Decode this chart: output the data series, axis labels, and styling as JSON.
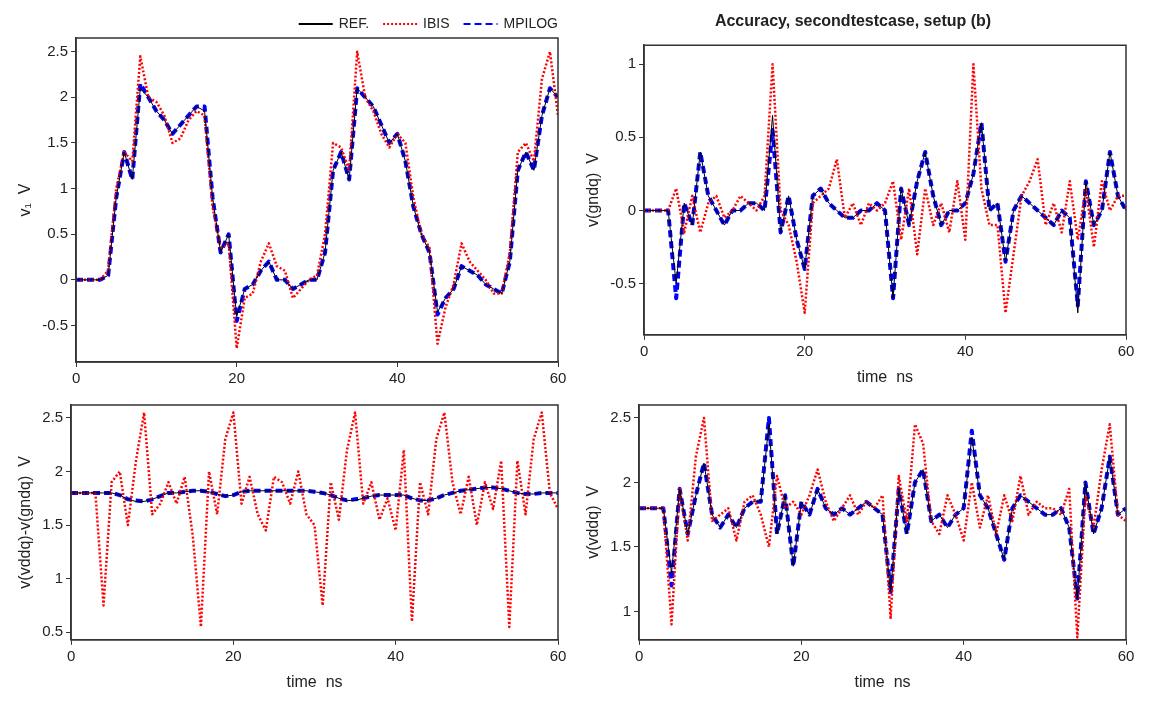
{
  "chart_data": [
    {
      "type": "line",
      "ylabel": "v₁  V",
      "xlim": [
        0,
        60
      ],
      "xticks": [
        0,
        20,
        40,
        60
      ],
      "ylim": [
        -0.9,
        2.65
      ],
      "yticks": [
        -0.5,
        0,
        0.5,
        1,
        1.5,
        2,
        2.5
      ],
      "grid": false,
      "legend": "top right",
      "marker": "none",
      "x": [
        0,
        1,
        2,
        3,
        4,
        5,
        6,
        7,
        8,
        9,
        10,
        11,
        12,
        13,
        14,
        15,
        16,
        17,
        18,
        19,
        20,
        21,
        22,
        23,
        24,
        25,
        26,
        27,
        28,
        29,
        30,
        31,
        32,
        33,
        34,
        35,
        36,
        37,
        38,
        39,
        40,
        41,
        42,
        43,
        44,
        45,
        46,
        47,
        48,
        49,
        50,
        51,
        52,
        53,
        54,
        55,
        56,
        57,
        58,
        59,
        60
      ],
      "series": [
        {
          "name": "REF.",
          "color": "#000000",
          "line_style": "solid",
          "values": [
            0,
            0,
            0,
            0,
            0.05,
            0.9,
            1.4,
            1.1,
            2.1,
            2.0,
            1.85,
            1.75,
            1.6,
            1.7,
            1.8,
            1.9,
            1.85,
            0.9,
            0.3,
            0.5,
            -0.4,
            -0.1,
            -0.05,
            0.1,
            0.2,
            0,
            0,
            -0.1,
            -0.05,
            0,
            0,
            0.3,
            1.2,
            1.4,
            1.1,
            2.1,
            2.0,
            1.9,
            1.7,
            1.5,
            1.6,
            1.3,
            0.8,
            0.5,
            0.3,
            -0.35,
            -0.2,
            -0.1,
            0.15,
            0.1,
            0.05,
            -0.05,
            -0.1,
            -0.15,
            0.2,
            1.2,
            1.4,
            1.2,
            1.8,
            2.1,
            2.0
          ]
        },
        {
          "name": "IBIS",
          "color": "#ff0000",
          "line_style": "dotted",
          "values": [
            0,
            0,
            0,
            0,
            0.1,
            1.0,
            1.4,
            1.3,
            2.45,
            2.0,
            1.95,
            1.8,
            1.5,
            1.55,
            1.75,
            1.85,
            1.8,
            0.8,
            0.35,
            0.4,
            -0.75,
            -0.2,
            -0.15,
            0.2,
            0.4,
            0.15,
            0.1,
            -0.2,
            -0.1,
            0,
            0.05,
            0.5,
            1.5,
            1.45,
            1.2,
            2.5,
            2.0,
            1.85,
            1.6,
            1.45,
            1.6,
            1.5,
            0.9,
            0.5,
            0.35,
            -0.7,
            -0.3,
            -0.05,
            0.4,
            0.2,
            0.1,
            0,
            -0.15,
            -0.15,
            0.3,
            1.4,
            1.5,
            1.3,
            2.2,
            2.5,
            1.8
          ]
        },
        {
          "name": "MPILOG",
          "color": "#0000ff",
          "line_style": "dashed",
          "values": [
            0,
            0,
            0,
            0,
            0.05,
            0.9,
            1.4,
            1.1,
            2.15,
            2.0,
            1.85,
            1.75,
            1.6,
            1.7,
            1.8,
            1.9,
            1.9,
            0.9,
            0.3,
            0.5,
            -0.45,
            -0.1,
            -0.05,
            0.1,
            0.2,
            0,
            0,
            -0.1,
            -0.05,
            0,
            0,
            0.3,
            1.2,
            1.4,
            1.1,
            2.1,
            2.0,
            1.9,
            1.7,
            1.5,
            1.6,
            1.3,
            0.8,
            0.5,
            0.3,
            -0.38,
            -0.2,
            -0.1,
            0.15,
            0.1,
            0.05,
            -0.05,
            -0.1,
            -0.15,
            0.2,
            1.2,
            1.4,
            1.2,
            1.8,
            2.1,
            2.0
          ]
        }
      ]
    },
    {
      "type": "line",
      "title": "Accuracy, secondtestcase, setup (b)",
      "xlabel": "time  ns",
      "ylabel": "v(gndq)  V",
      "xlim": [
        0,
        60
      ],
      "xticks": [
        0,
        20,
        40,
        60
      ],
      "ylim": [
        -0.85,
        1.13
      ],
      "yticks": [
        -0.5,
        0,
        0.5,
        1
      ],
      "grid": false,
      "marker": "none",
      "x": [
        0,
        1,
        2,
        3,
        4,
        5,
        6,
        7,
        8,
        9,
        10,
        11,
        12,
        13,
        14,
        15,
        16,
        17,
        18,
        19,
        20,
        21,
        22,
        23,
        24,
        25,
        26,
        27,
        28,
        29,
        30,
        31,
        32,
        33,
        34,
        35,
        36,
        37,
        38,
        39,
        40,
        41,
        42,
        43,
        44,
        45,
        46,
        47,
        48,
        49,
        50,
        51,
        52,
        53,
        54,
        55,
        56,
        57,
        58,
        59,
        60
      ],
      "series": [
        {
          "color": "#000000",
          "line_style": "solid",
          "values": [
            0,
            0,
            0,
            0,
            -0.5,
            0.05,
            -0.1,
            0.4,
            0.1,
            0,
            -0.1,
            0,
            0,
            0.05,
            0.05,
            0,
            0.65,
            -0.15,
            0.1,
            -0.2,
            -0.4,
            0.1,
            0.15,
            0.05,
            0,
            -0.05,
            -0.05,
            0,
            0,
            0.05,
            0,
            -0.6,
            0.15,
            -0.1,
            0.2,
            0.4,
            0.1,
            -0.1,
            0,
            0,
            0.05,
            0.25,
            0.6,
            0,
            0.05,
            -0.35,
            0,
            0.1,
            0.05,
            0,
            -0.05,
            -0.1,
            0,
            -0.05,
            -0.7,
            0.2,
            -0.1,
            0,
            0.4,
            0.1,
            0
          ]
        },
        {
          "color": "#ff0000",
          "line_style": "dotted",
          "values": [
            0,
            0,
            0,
            0,
            0.15,
            -0.15,
            0.1,
            -0.15,
            0.05,
            0.1,
            -0.05,
            0,
            0.1,
            0.05,
            0,
            0.1,
            1.0,
            0,
            -0.1,
            -0.35,
            -0.7,
            0.05,
            0.1,
            0.15,
            0.35,
            -0.05,
            0.05,
            -0.1,
            0.05,
            0,
            0.05,
            0.2,
            -0.2,
            0.15,
            -0.3,
            0.15,
            -0.1,
            0.05,
            -0.15,
            0.2,
            -0.2,
            1.0,
            0.15,
            -0.1,
            -0.1,
            -0.7,
            -0.3,
            0.1,
            0.2,
            0.35,
            -0.1,
            0.05,
            -0.15,
            0.2,
            -0.2,
            0.15,
            -0.25,
            0.2,
            0,
            0.1,
            0.1
          ]
        },
        {
          "color": "#0000ff",
          "line_style": "dashed",
          "values": [
            0,
            0,
            0,
            0,
            -0.6,
            0.05,
            -0.1,
            0.4,
            0.1,
            0,
            -0.1,
            0,
            0,
            0.05,
            0.05,
            0,
            0.55,
            -0.15,
            0.1,
            -0.2,
            -0.4,
            0.1,
            0.15,
            0.05,
            0,
            -0.05,
            -0.05,
            0,
            0,
            0.05,
            0,
            -0.6,
            0.15,
            -0.1,
            0.2,
            0.4,
            0.1,
            -0.1,
            0,
            0,
            0.05,
            0.25,
            0.6,
            0,
            0.05,
            -0.35,
            0,
            0.1,
            0.05,
            0,
            -0.05,
            -0.1,
            0,
            -0.05,
            -0.65,
            0.2,
            -0.1,
            0,
            0.4,
            0.1,
            0
          ]
        }
      ]
    },
    {
      "type": "line",
      "xlabel": "time  ns",
      "ylabel": "v(vddq)-v(gndq)  V",
      "xlim": [
        0,
        60
      ],
      "xticks": [
        0,
        20,
        40,
        60
      ],
      "ylim": [
        0.43,
        2.62
      ],
      "yticks": [
        0.5,
        1,
        1.5,
        2,
        2.5
      ],
      "grid": false,
      "marker": "none",
      "x": [
        0,
        1,
        2,
        3,
        4,
        5,
        6,
        7,
        8,
        9,
        10,
        11,
        12,
        13,
        14,
        15,
        16,
        17,
        18,
        19,
        20,
        21,
        22,
        23,
        24,
        25,
        26,
        27,
        28,
        29,
        30,
        31,
        32,
        33,
        34,
        35,
        36,
        37,
        38,
        39,
        40,
        41,
        42,
        43,
        44,
        45,
        46,
        47,
        48,
        49,
        50,
        51,
        52,
        53,
        54,
        55,
        56,
        57,
        58,
        59,
        60
      ],
      "series": [
        {
          "color": "#000000",
          "line_style": "solid",
          "values": [
            1.8,
            1.8,
            1.8,
            1.8,
            1.8,
            1.8,
            1.78,
            1.74,
            1.72,
            1.72,
            1.74,
            1.77,
            1.8,
            1.8,
            1.81,
            1.82,
            1.82,
            1.81,
            1.79,
            1.77,
            1.78,
            1.81,
            1.82,
            1.82,
            1.82,
            1.82,
            1.82,
            1.82,
            1.82,
            1.82,
            1.81,
            1.8,
            1.78,
            1.75,
            1.73,
            1.73,
            1.75,
            1.77,
            1.78,
            1.78,
            1.78,
            1.78,
            1.75,
            1.73,
            1.73,
            1.75,
            1.78,
            1.8,
            1.82,
            1.83,
            1.84,
            1.85,
            1.85,
            1.84,
            1.82,
            1.8,
            1.79,
            1.79,
            1.8,
            1.8,
            1.8
          ]
        },
        {
          "color": "#ff0000",
          "line_style": "dotted",
          "values": [
            1.8,
            1.8,
            1.8,
            1.8,
            0.75,
            1.9,
            2.0,
            1.5,
            2.1,
            2.55,
            1.6,
            1.7,
            1.9,
            1.7,
            1.95,
            1.4,
            0.55,
            2.0,
            1.6,
            2.3,
            2.55,
            1.7,
            1.95,
            1.6,
            1.45,
            1.95,
            1.9,
            1.7,
            2.0,
            1.6,
            1.5,
            0.75,
            1.9,
            1.55,
            2.2,
            2.55,
            1.7,
            1.9,
            1.55,
            1.75,
            1.45,
            2.2,
            0.6,
            1.9,
            1.6,
            2.3,
            2.55,
            1.9,
            1.6,
            1.95,
            1.5,
            1.9,
            1.65,
            2.1,
            0.55,
            2.1,
            1.6,
            2.3,
            2.55,
            1.8,
            1.65
          ]
        },
        {
          "color": "#0000ff",
          "line_style": "dashed",
          "values": [
            1.8,
            1.8,
            1.8,
            1.8,
            1.8,
            1.8,
            1.78,
            1.74,
            1.73,
            1.72,
            1.74,
            1.77,
            1.8,
            1.8,
            1.81,
            1.82,
            1.82,
            1.81,
            1.79,
            1.77,
            1.78,
            1.81,
            1.82,
            1.82,
            1.82,
            1.82,
            1.82,
            1.82,
            1.82,
            1.82,
            1.81,
            1.8,
            1.78,
            1.75,
            1.73,
            1.74,
            1.75,
            1.77,
            1.78,
            1.78,
            1.78,
            1.78,
            1.75,
            1.73,
            1.73,
            1.75,
            1.78,
            1.8,
            1.82,
            1.83,
            1.84,
            1.85,
            1.85,
            1.84,
            1.82,
            1.8,
            1.79,
            1.79,
            1.8,
            1.8,
            1.8
          ]
        }
      ]
    },
    {
      "type": "line",
      "xlabel": "time  ns",
      "ylabel": "v(vddq)  V",
      "xlim": [
        0,
        60
      ],
      "xticks": [
        0,
        20,
        40,
        60
      ],
      "ylim": [
        0.78,
        2.6
      ],
      "yticks": [
        1,
        1.5,
        2,
        2.5
      ],
      "grid": false,
      "marker": "none",
      "x": [
        0,
        1,
        2,
        3,
        4,
        5,
        6,
        7,
        8,
        9,
        10,
        11,
        12,
        13,
        14,
        15,
        16,
        17,
        18,
        19,
        20,
        21,
        22,
        23,
        24,
        25,
        26,
        27,
        28,
        29,
        30,
        31,
        32,
        33,
        34,
        35,
        36,
        37,
        38,
        39,
        40,
        41,
        42,
        43,
        44,
        45,
        46,
        47,
        48,
        49,
        50,
        51,
        52,
        53,
        54,
        55,
        56,
        57,
        58,
        59,
        60
      ],
      "series": [
        {
          "color": "#000000",
          "line_style": "solid",
          "values": [
            1.8,
            1.8,
            1.8,
            1.8,
            1.3,
            1.95,
            1.6,
            1.9,
            2.15,
            1.75,
            1.65,
            1.75,
            1.65,
            1.8,
            1.85,
            1.85,
            2.45,
            1.6,
            1.9,
            1.35,
            1.85,
            1.75,
            1.95,
            1.8,
            1.75,
            1.8,
            1.75,
            1.8,
            1.85,
            1.8,
            1.75,
            1.15,
            1.95,
            1.6,
            2.0,
            2.1,
            1.7,
            1.75,
            1.65,
            1.75,
            1.8,
            2.35,
            1.9,
            1.8,
            1.6,
            1.4,
            1.8,
            1.9,
            1.85,
            1.8,
            1.75,
            1.75,
            1.8,
            1.65,
            1.1,
            2.0,
            1.6,
            1.8,
            2.2,
            1.75,
            1.8
          ]
        },
        {
          "color": "#ff0000",
          "line_style": "dotted",
          "values": [
            1.8,
            1.8,
            1.8,
            1.8,
            0.9,
            1.95,
            1.55,
            2.2,
            2.5,
            1.7,
            1.75,
            1.8,
            1.55,
            1.85,
            1.9,
            1.75,
            1.5,
            2.05,
            1.8,
            1.85,
            1.75,
            1.9,
            2.1,
            1.85,
            1.7,
            1.8,
            1.9,
            1.75,
            1.85,
            1.8,
            1.9,
            0.95,
            2.05,
            1.7,
            2.45,
            2.3,
            1.7,
            1.6,
            1.9,
            1.75,
            1.55,
            2.0,
            1.65,
            1.9,
            1.6,
            1.9,
            1.7,
            2.05,
            1.75,
            1.85,
            1.8,
            1.8,
            1.75,
            1.95,
            0.8,
            1.9,
            1.65,
            2.1,
            2.45,
            1.75,
            1.7
          ]
        },
        {
          "color": "#0000ff",
          "line_style": "dashed",
          "values": [
            1.8,
            1.8,
            1.8,
            1.8,
            1.2,
            1.95,
            1.6,
            1.9,
            2.15,
            1.75,
            1.65,
            1.75,
            1.65,
            1.8,
            1.85,
            1.85,
            2.5,
            1.6,
            1.9,
            1.35,
            1.85,
            1.75,
            1.95,
            1.8,
            1.75,
            1.8,
            1.75,
            1.8,
            1.85,
            1.8,
            1.75,
            1.15,
            1.95,
            1.6,
            2.0,
            2.1,
            1.7,
            1.75,
            1.65,
            1.75,
            1.8,
            2.4,
            1.9,
            1.8,
            1.6,
            1.4,
            1.8,
            1.9,
            1.85,
            1.8,
            1.75,
            1.75,
            1.8,
            1.65,
            1.1,
            2.0,
            1.6,
            1.8,
            2.2,
            1.75,
            1.8
          ]
        }
      ]
    }
  ]
}
